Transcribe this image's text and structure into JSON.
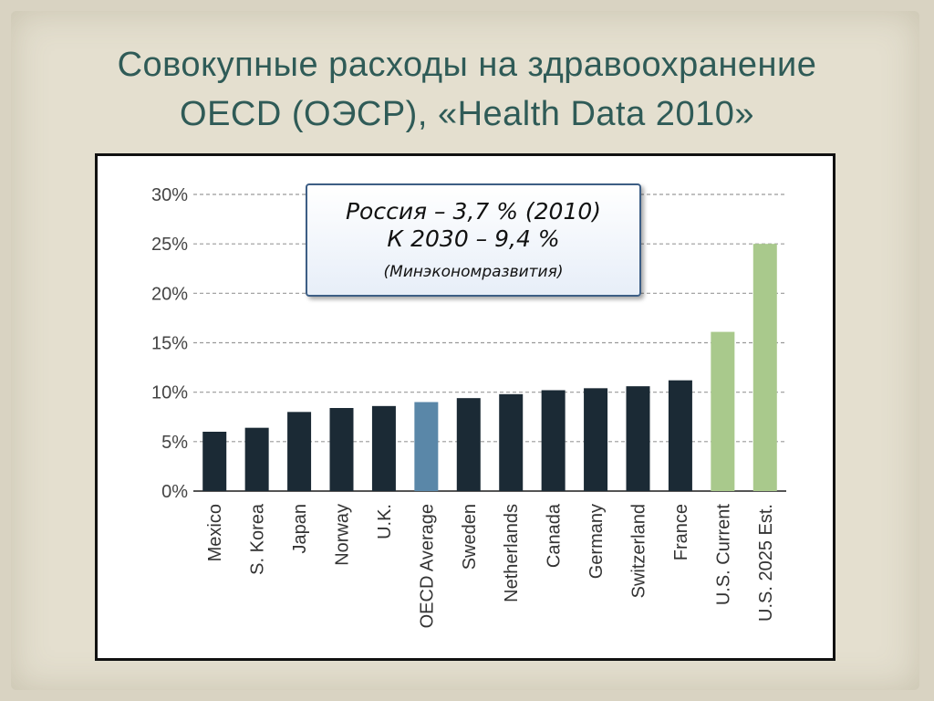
{
  "slide": {
    "title_line1": "Совокупные расходы на здравоохранение",
    "title_line2": "OECD (ОЭСР), «Health Data 2010»"
  },
  "callout": {
    "line1": "Россия – 3,7 % (2010)",
    "line2": "К 2030 – 9,4 %",
    "line3": "(Минэкономразвития)"
  },
  "colors": {
    "dark": "#1b2a35",
    "average": "#5a87a8",
    "us": "#a9c98c",
    "title": "#2f5b57"
  },
  "chart_data": {
    "type": "bar",
    "categories": [
      "Mexico",
      "S. Korea",
      "Japan",
      "Norway",
      "U.K.",
      "OECD Average",
      "Sweden",
      "Netherlands",
      "Canada",
      "Germany",
      "Switzerland",
      "France",
      "U.S. Current",
      "U.S. 2025 Est."
    ],
    "values": [
      6.0,
      6.4,
      8.0,
      8.4,
      8.6,
      9.0,
      9.4,
      9.8,
      10.2,
      10.4,
      10.6,
      11.2,
      16.1,
      25.0
    ],
    "bar_colors": [
      "dark",
      "dark",
      "dark",
      "dark",
      "dark",
      "average",
      "dark",
      "dark",
      "dark",
      "dark",
      "dark",
      "dark",
      "us",
      "us"
    ],
    "y_ticks": [
      "0%",
      "5%",
      "10%",
      "15%",
      "20%",
      "25%",
      "30%"
    ],
    "ylim": [
      0,
      30
    ],
    "grid": "dashed horizontal",
    "title": "",
    "xlabel": "",
    "ylabel": ""
  }
}
